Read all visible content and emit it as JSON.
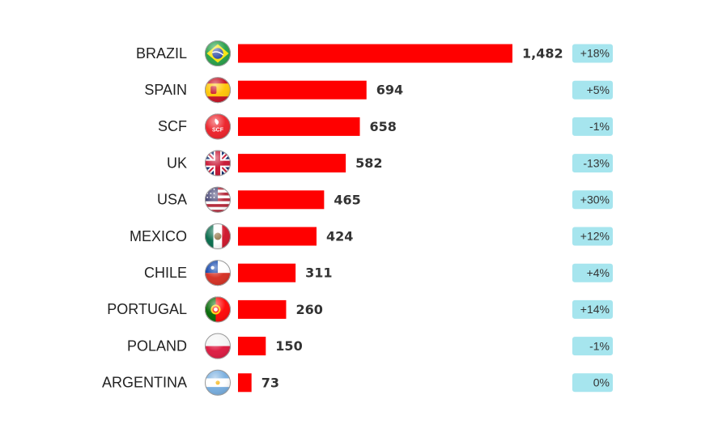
{
  "chart_data": {
    "type": "bar",
    "orientation": "horizontal",
    "categories": [
      "BRAZIL",
      "SPAIN",
      "SCF",
      "UK",
      "USA",
      "MEXICO",
      "CHILE",
      "PORTUGAL",
      "POLAND",
      "ARGENTINA"
    ],
    "values": [
      1482,
      694,
      658,
      582,
      465,
      424,
      311,
      260,
      150,
      73
    ],
    "value_labels": [
      "1,482",
      "694",
      "658",
      "582",
      "465",
      "424",
      "311",
      "260",
      "150",
      "73"
    ],
    "changes": [
      "+18%",
      "+5%",
      "-1%",
      "-13%",
      "+30%",
      "+12%",
      "+4%",
      "+14%",
      "-1%",
      "0%"
    ],
    "icons": [
      "brazil-flag-icon",
      "spain-flag-icon",
      "scf-logo-icon",
      "uk-flag-icon",
      "usa-flag-icon",
      "mexico-flag-icon",
      "chile-flag-icon",
      "portugal-flag-icon",
      "poland-flag-icon",
      "argentina-flag-icon"
    ],
    "scf_logo_text": "SCF",
    "xlim": [
      0,
      1482
    ],
    "grid": false,
    "legend": "none",
    "colors": {
      "bar": "#ff0000",
      "badge": "#a6e5ee"
    }
  }
}
